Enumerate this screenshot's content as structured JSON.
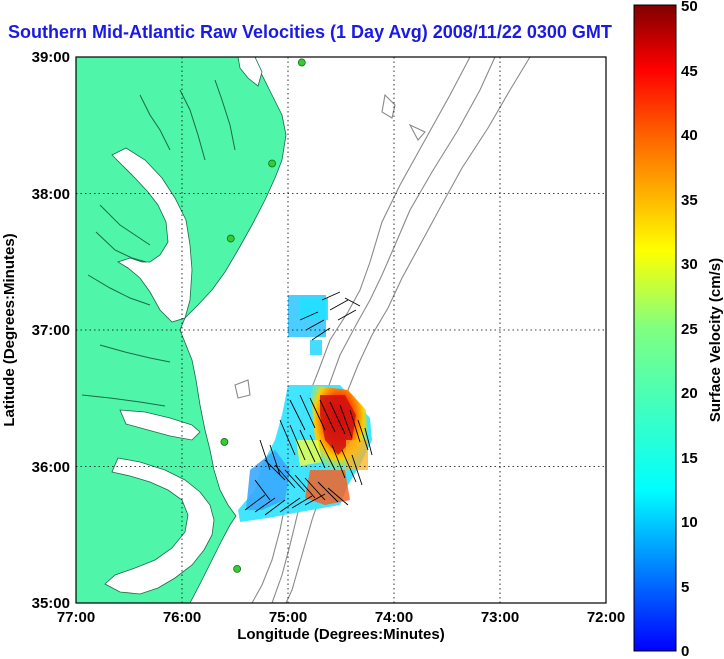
{
  "title": "Southern Mid-Atlantic Raw Velocities (1 Day Avg) 2008/11/22 0300 GMT",
  "map": {
    "xlabel": "Longitude (Degrees:Minutes)",
    "ylabel": "Latitude (Degrees:Minutes)",
    "x_ticks": [
      "77:00",
      "76:00",
      "75:00",
      "74:00",
      "73:00",
      "72:00"
    ],
    "y_ticks": [
      "39:00",
      "38:00",
      "37:00",
      "36:00",
      "35:00"
    ],
    "lon_range": [
      -77,
      -72
    ],
    "lat_range": [
      35,
      39
    ],
    "grid": "dotted",
    "colors": {
      "land": "#4ff5a8",
      "ocean": "#ffffff",
      "bathymetry": "#8a8a8a",
      "station": "#33cc33",
      "grid": "#000000"
    }
  },
  "stations": [
    {
      "lon": -74.87,
      "lat": 38.96
    },
    {
      "lon": -75.15,
      "lat": 38.22
    },
    {
      "lon": -75.54,
      "lat": 37.67
    },
    {
      "lon": -75.6,
      "lat": 36.18
    },
    {
      "lon": -75.48,
      "lat": 35.25
    }
  ],
  "colorbar": {
    "label": "Surface Velocity (cm/s)",
    "ticks": [
      "0",
      "5",
      "10",
      "15",
      "20",
      "25",
      "30",
      "35",
      "40",
      "45",
      "50"
    ],
    "range": [
      0,
      50
    ],
    "colormap": "jet"
  }
}
